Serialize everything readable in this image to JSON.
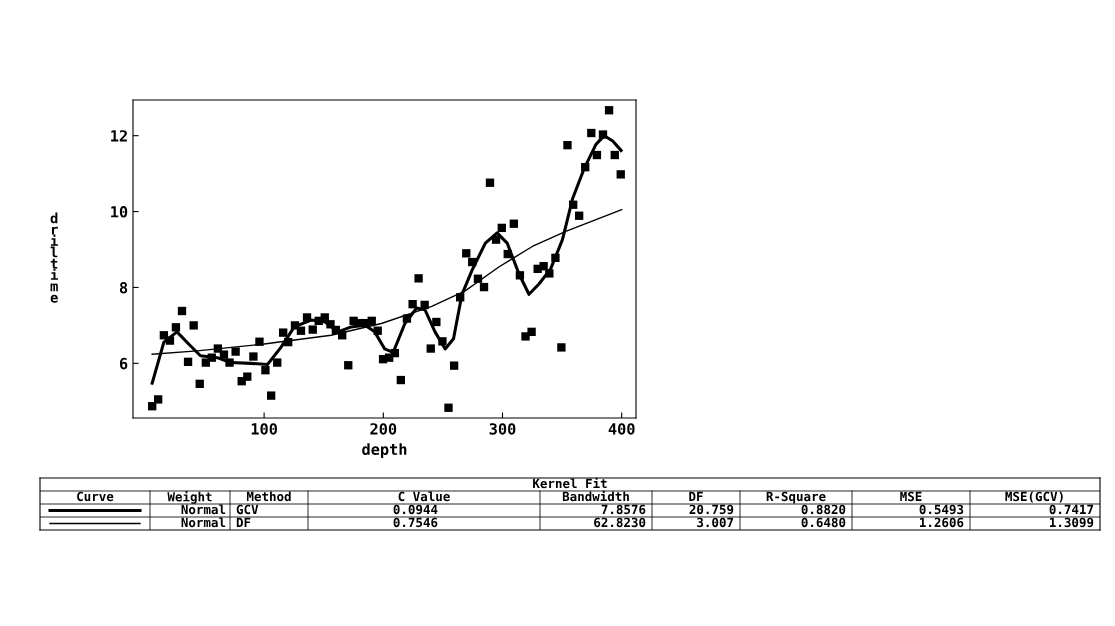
{
  "chart_data": {
    "type": "scatter",
    "xlabel": "depth",
    "ylabel": "driltime",
    "xlim": [
      -10,
      412
    ],
    "ylim": [
      4.56,
      12.94
    ],
    "xticks": [
      100,
      200,
      300,
      400
    ],
    "yticks": [
      6,
      8,
      10,
      12
    ],
    "grid": false,
    "legend": false,
    "series": [
      {
        "color": "#000000",
        "marker": "square",
        "x": [
          6.1,
          11.1,
          15.9,
          21.0,
          26.0,
          31.1,
          36.2,
          40.9,
          46.0,
          51.1,
          56.1,
          61.2,
          66.3,
          71.0,
          76.1,
          81.2,
          85.9,
          91.0,
          96.1,
          101.1,
          105.9,
          111.0,
          116.0,
          120.2,
          125.9,
          130.9,
          136.0,
          140.8,
          145.8,
          150.9,
          155.7,
          160.2,
          165.5,
          170.6,
          175.1,
          180.4,
          185.5,
          190.3,
          195.3,
          199.8,
          204.9,
          209.7,
          214.7,
          219.8,
          224.6,
          229.6,
          234.7,
          239.8,
          244.5,
          249.6,
          254.7,
          259.4,
          264.5,
          269.6,
          274.6,
          279.4,
          284.5,
          289.5,
          294.6,
          299.4,
          304.4,
          309.5,
          314.6,
          319.3,
          324.4,
          329.5,
          334.5,
          339.3,
          344.4,
          349.4,
          354.5,
          359.3,
          364.3,
          369.4,
          374.5,
          379.2,
          384.3,
          389.4,
          394.2,
          399.2
        ],
        "values": [
          4.87,
          5.05,
          6.74,
          6.6,
          6.95,
          7.38,
          6.04,
          7.0,
          5.46,
          6.02,
          6.15,
          6.39,
          6.23,
          6.02,
          6.31,
          5.53,
          5.65,
          6.18,
          6.57,
          5.82,
          5.15,
          6.02,
          6.81,
          6.56,
          7.0,
          6.86,
          7.21,
          6.89,
          7.12,
          7.21,
          7.03,
          6.88,
          6.74,
          5.95,
          7.12,
          7.06,
          7.06,
          7.12,
          6.86,
          6.11,
          6.15,
          6.27,
          5.56,
          7.18,
          7.56,
          8.24,
          7.54,
          6.39,
          7.09,
          6.58,
          4.83,
          5.94,
          7.74,
          8.9,
          8.67,
          8.23,
          8.01,
          10.76,
          9.26,
          9.57,
          8.88,
          9.68,
          8.32,
          6.71,
          6.83,
          8.49,
          8.56,
          8.37,
          8.78,
          6.42,
          11.75,
          10.18,
          9.89,
          11.17,
          12.07,
          11.49,
          12.03,
          12.67,
          11.49,
          10.98
        ]
      },
      {
        "type": "line",
        "color": "#000000",
        "line_style": "solid",
        "x": [
          6.1,
          15.9,
          26.9,
          36.7,
          46.6,
          60.6,
          71.9,
          88.8,
          102.8,
          114.1,
          125.3,
          139.4,
          150.6,
          161.9,
          173.1,
          184.4,
          192.8,
          201.2,
          208.3,
          218.1,
          228.0,
          235.0,
          243.4,
          251.9,
          258.9,
          266.0,
          274.4,
          285.6,
          295.5,
          303.9,
          313.8,
          322.2,
          330.6,
          340.4,
          350.3,
          358.7,
          368.6,
          378.4,
          385.4,
          392.5,
          399.5
        ],
        "values": [
          5.48,
          6.56,
          6.83,
          6.51,
          6.2,
          6.15,
          6.02,
          6.0,
          5.97,
          6.42,
          6.96,
          7.14,
          7.1,
          6.83,
          6.96,
          7.01,
          6.83,
          6.38,
          6.29,
          7.05,
          7.46,
          7.41,
          6.83,
          6.38,
          6.65,
          7.82,
          8.45,
          9.17,
          9.44,
          9.17,
          8.36,
          7.82,
          8.09,
          8.49,
          9.26,
          10.33,
          11.14,
          11.77,
          12.0,
          11.86,
          11.61
        ]
      },
      {
        "type": "line",
        "color": "#000000",
        "line_style": "solid",
        "x": [
          6.1,
          43.8,
          100,
          156.2,
          198.4,
          240.6,
          268.7,
          296.9,
          325,
          353.1,
          400
        ],
        "values": [
          6.24,
          6.33,
          6.51,
          6.74,
          7.05,
          7.5,
          7.91,
          8.54,
          9.08,
          9.48,
          10.05
        ]
      }
    ],
    "annotations": [
      "Kernel Fit",
      "Curve",
      "Weight",
      "Method",
      "C Value",
      "Bandwidth",
      "DF",
      "R-Square",
      "MSE",
      "MSE(GCV)",
      "Normal",
      "GCV",
      "0.0944",
      "7.8576",
      "20.759",
      "0.8820",
      "0.5493",
      "0.7417",
      "Normal",
      "DF",
      "0.7546",
      "62.8230",
      "3.007",
      "0.6480",
      "1.2606",
      "1.3099"
    ]
  }
}
